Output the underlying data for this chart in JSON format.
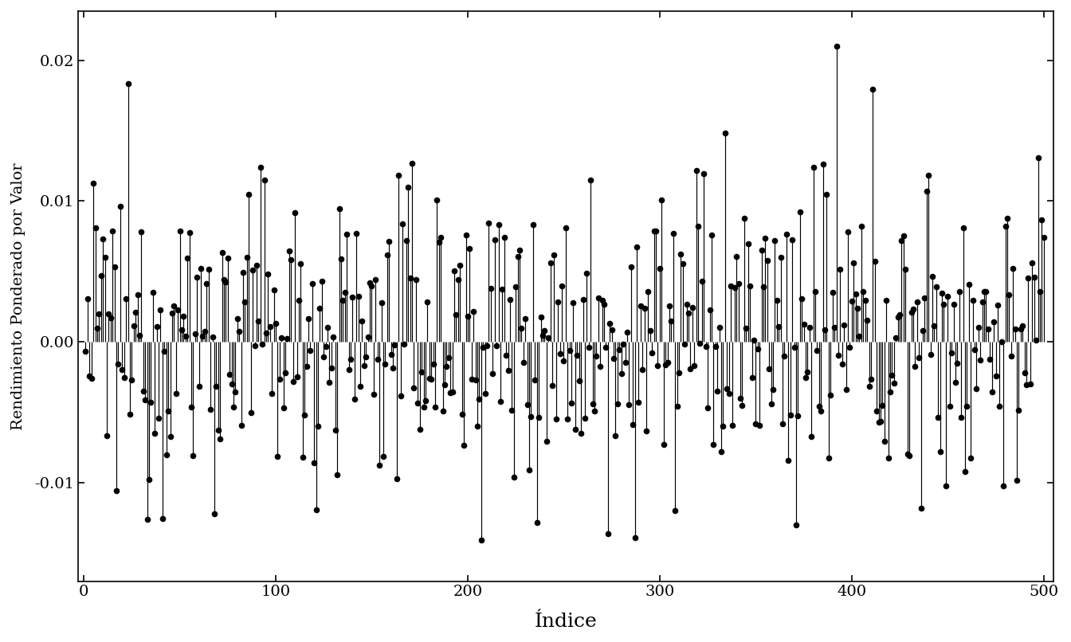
{
  "xlabel": "Índice",
  "ylabel": "Rendimiento Ponderado por Valor",
  "xlim": [
    -3,
    505
  ],
  "ylim": [
    -0.017,
    0.0235
  ],
  "xticks": [
    0,
    100,
    200,
    300,
    400,
    500
  ],
  "yticks": [
    -0.01,
    0.0,
    0.01,
    0.02
  ],
  "ytick_labels": [
    "-0.01",
    "0.00",
    "0.01",
    "0.02"
  ],
  "n_points": 500,
  "random_seed": 12345,
  "line_color": "black",
  "marker_color": "black",
  "marker_size": 5.5,
  "line_width": 0.85,
  "background_color": "white",
  "xlabel_fontsize": 18,
  "ylabel_fontsize": 14,
  "tick_fontsize": 14,
  "mean_return": 0.00045,
  "std_return": 0.0055
}
